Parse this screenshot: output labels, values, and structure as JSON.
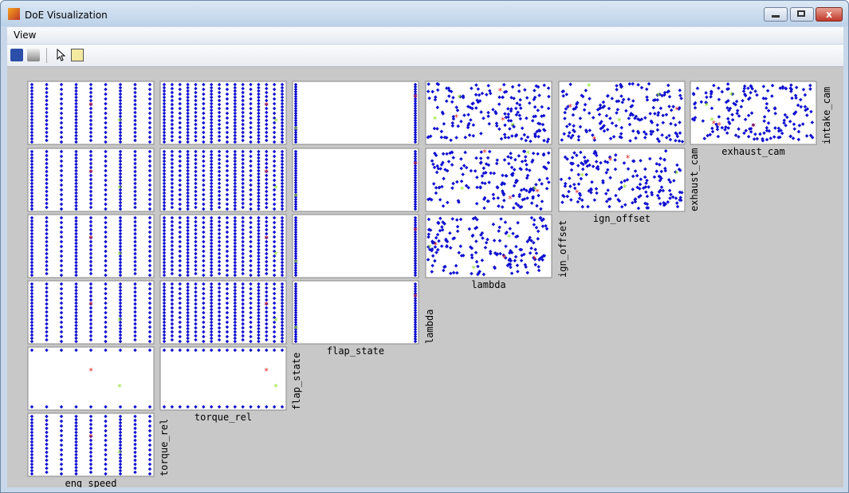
{
  "window": {
    "title": "DoE Visualization"
  },
  "menu": [
    "View"
  ],
  "matrix": {
    "x_labels": [
      "eng_speed",
      "torque_rel",
      "flap_state",
      "lambda",
      "ign_offset",
      "exhaust_cam"
    ],
    "y_labels": [
      "torque_rel",
      "flap_state",
      "lambda",
      "ign_offset",
      "exhaust_cam",
      "intake_cam"
    ]
  }
}
